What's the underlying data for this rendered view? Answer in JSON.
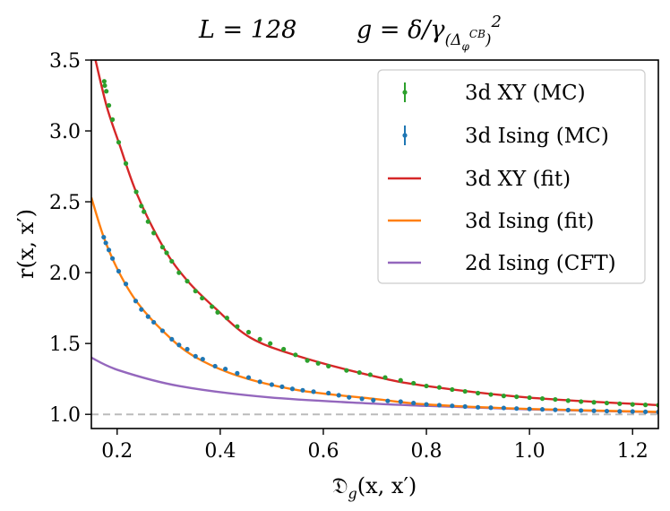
{
  "chart_data": {
    "type": "line",
    "title": {
      "left": "L = 128",
      "right_main": "g = δ/γ",
      "right_sub": "(Δ",
      "right_sub_sub": "φ",
      "right_sub_sup": "CB",
      "right_sub_close": ")",
      "right_sup": "2"
    },
    "xlabel": {
      "main": "𝔇",
      "sub": "g",
      "rest": "(x, x′)"
    },
    "ylabel": "r(x, x′)",
    "xlim": [
      0.15,
      1.25
    ],
    "ylim": [
      0.9,
      3.5
    ],
    "xticks": [
      0.2,
      0.4,
      0.6,
      0.8,
      1.0,
      1.2
    ],
    "xtick_labels": [
      "0.2",
      "0.4",
      "0.6",
      "0.8",
      "1.0",
      "1.2"
    ],
    "yticks": [
      1.0,
      1.5,
      2.0,
      2.5,
      3.0,
      3.5
    ],
    "ytick_labels": [
      "1.0",
      "1.5",
      "2.0",
      "2.5",
      "3.0",
      "3.5"
    ],
    "grid": false,
    "reference_line": {
      "y": 1.0,
      "style": "dashed",
      "color": "#bbbbbb"
    },
    "legend_position": "top-right",
    "series": [
      {
        "name": "3d XY (MC)",
        "kind": "errorbar-points",
        "color": "#2ca02c",
        "x": [
          0.175,
          0.176,
          0.179,
          0.184,
          0.191,
          0.203,
          0.217,
          0.237,
          0.247,
          0.252,
          0.26,
          0.271,
          0.288,
          0.296,
          0.306,
          0.32,
          0.336,
          0.352,
          0.365,
          0.384,
          0.395,
          0.413,
          0.433,
          0.455,
          0.477,
          0.497,
          0.523,
          0.546,
          0.569,
          0.59,
          0.61,
          0.645,
          0.67,
          0.691,
          0.72,
          0.75,
          0.775,
          0.8,
          0.825,
          0.85,
          0.875,
          0.9,
          0.925,
          0.95,
          0.975,
          1.0,
          1.025,
          1.05,
          1.075,
          1.1,
          1.125,
          1.15,
          1.175,
          1.2,
          1.225,
          1.25
        ],
        "y": [
          3.35,
          3.32,
          3.28,
          3.18,
          3.08,
          2.92,
          2.77,
          2.57,
          2.47,
          2.43,
          2.36,
          2.28,
          2.18,
          2.14,
          2.08,
          2.0,
          1.94,
          1.87,
          1.82,
          1.76,
          1.72,
          1.68,
          1.62,
          1.58,
          1.53,
          1.5,
          1.46,
          1.42,
          1.38,
          1.36,
          1.34,
          1.31,
          1.295,
          1.28,
          1.26,
          1.24,
          1.22,
          1.2,
          1.19,
          1.175,
          1.162,
          1.15,
          1.14,
          1.13,
          1.124,
          1.118,
          1.111,
          1.105,
          1.097,
          1.09,
          1.085,
          1.08,
          1.075,
          1.07,
          1.067,
          1.065
        ]
      },
      {
        "name": "3d Ising (MC)",
        "kind": "errorbar-points",
        "color": "#1f77b4",
        "x": [
          0.174,
          0.178,
          0.184,
          0.191,
          0.203,
          0.217,
          0.236,
          0.247,
          0.26,
          0.271,
          0.288,
          0.306,
          0.32,
          0.336,
          0.352,
          0.366,
          0.39,
          0.41,
          0.433,
          0.455,
          0.477,
          0.5,
          0.52,
          0.54,
          0.56,
          0.581,
          0.61,
          0.63,
          0.65,
          0.675,
          0.697,
          0.725,
          0.75,
          0.775,
          0.8,
          0.825,
          0.85,
          0.875,
          0.9,
          0.925,
          0.95,
          0.975,
          1.0,
          1.025,
          1.05,
          1.075,
          1.1,
          1.125,
          1.15,
          1.175,
          1.2,
          1.225,
          1.25
        ],
        "y": [
          2.25,
          2.21,
          2.16,
          2.1,
          2.01,
          1.92,
          1.8,
          1.74,
          1.69,
          1.65,
          1.59,
          1.53,
          1.49,
          1.46,
          1.41,
          1.39,
          1.34,
          1.32,
          1.29,
          1.26,
          1.23,
          1.21,
          1.195,
          1.18,
          1.17,
          1.16,
          1.15,
          1.135,
          1.12,
          1.11,
          1.1,
          1.095,
          1.09,
          1.08,
          1.07,
          1.065,
          1.06,
          1.055,
          1.05,
          1.047,
          1.045,
          1.041,
          1.038,
          1.035,
          1.032,
          1.03,
          1.027,
          1.025,
          1.023,
          1.021,
          1.02,
          1.018,
          1.017
        ]
      },
      {
        "name": "3d XY (fit)",
        "kind": "line",
        "color": "#d62728",
        "x": [
          0.158,
          0.18,
          0.204,
          0.239,
          0.291,
          0.337,
          0.39,
          0.459,
          0.552,
          0.697,
          0.8,
          1.0,
          1.25
        ],
        "y": [
          3.5,
          3.17,
          2.91,
          2.55,
          2.17,
          1.94,
          1.75,
          1.54,
          1.41,
          1.27,
          1.2,
          1.118,
          1.065
        ]
      },
      {
        "name": "3d Ising (fit)",
        "kind": "line",
        "color": "#ff7f0e",
        "x": [
          0.15,
          0.175,
          0.204,
          0.239,
          0.291,
          0.349,
          0.436,
          0.552,
          0.697,
          0.8,
          1.0,
          1.25
        ],
        "y": [
          2.53,
          2.24,
          2.0,
          1.79,
          1.58,
          1.41,
          1.27,
          1.17,
          1.11,
          1.07,
          1.038,
          1.017
        ]
      },
      {
        "name": "2d Ising (CFT)",
        "kind": "line",
        "color": "#9467bd",
        "x": [
          0.15,
          0.204,
          0.32,
          0.494,
          0.697,
          0.8,
          1.0,
          1.25
        ],
        "y": [
          1.4,
          1.31,
          1.2,
          1.12,
          1.076,
          1.06,
          1.035,
          1.015
        ]
      }
    ]
  }
}
